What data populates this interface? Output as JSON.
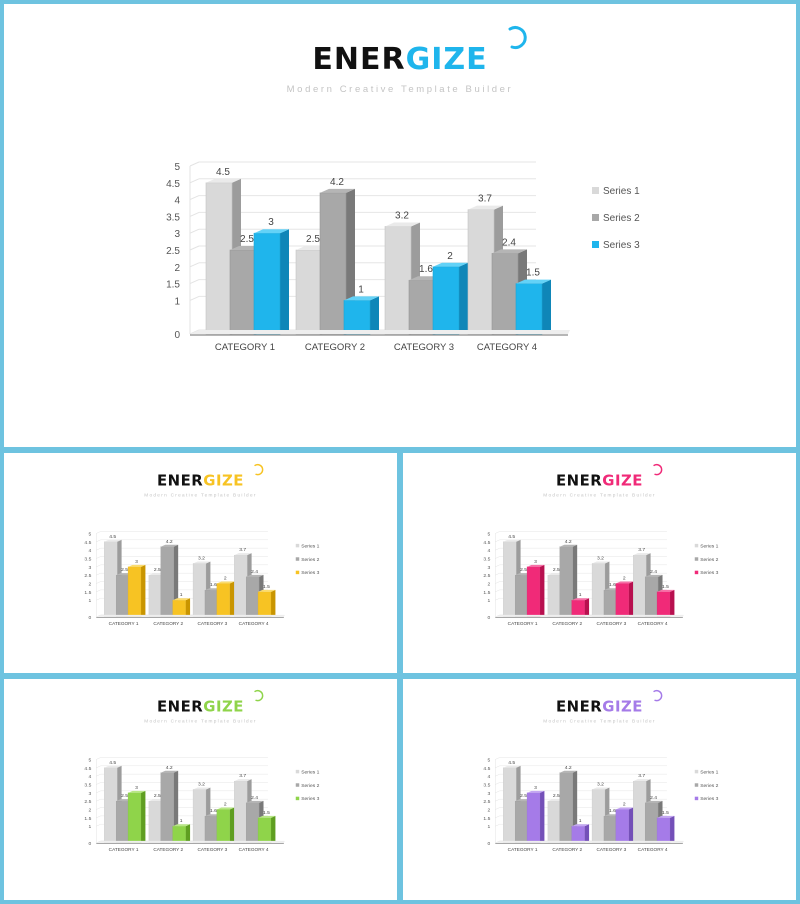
{
  "brand": {
    "part1": "ENER",
    "part2": "GIZE",
    "tagline": "Modern Creative Template Builder"
  },
  "variants": [
    {
      "accent": "#1fb5ec",
      "accent_dark": "#0f86b8",
      "accent_top": "#63d2f7"
    },
    {
      "accent": "#f7c323",
      "accent_dark": "#c99500",
      "accent_top": "#fbdc6f"
    },
    {
      "accent": "#f02a78",
      "accent_dark": "#b8104f",
      "accent_top": "#f770a7"
    },
    {
      "accent": "#8fd44a",
      "accent_dark": "#5f9e21",
      "accent_top": "#b8e786"
    },
    {
      "accent": "#a57be8",
      "accent_dark": "#7450b8",
      "accent_top": "#c4a7f2"
    }
  ],
  "chart_data": {
    "type": "bar",
    "categories": [
      "CATEGORY 1",
      "CATEGORY 2",
      "CATEGORY 3",
      "CATEGORY 4"
    ],
    "series": [
      {
        "name": "Series 1",
        "values": [
          4.5,
          2.5,
          3.2,
          3.7
        ]
      },
      {
        "name": "Series 2",
        "values": [
          2.5,
          4.2,
          1.6,
          2.4
        ]
      },
      {
        "name": "Series 3",
        "values": [
          3,
          1,
          2,
          1.5
        ]
      }
    ],
    "y_ticks": [
      "0",
      "1",
      "1.5",
      "2",
      "2.5",
      "3",
      "3.5",
      "4",
      "4.5",
      "5"
    ],
    "ylim": [
      0,
      5
    ],
    "grid": true,
    "legend_position": "right",
    "series_colors": [
      "#d9d9d9",
      "#a8a8a8",
      "accent"
    ]
  }
}
